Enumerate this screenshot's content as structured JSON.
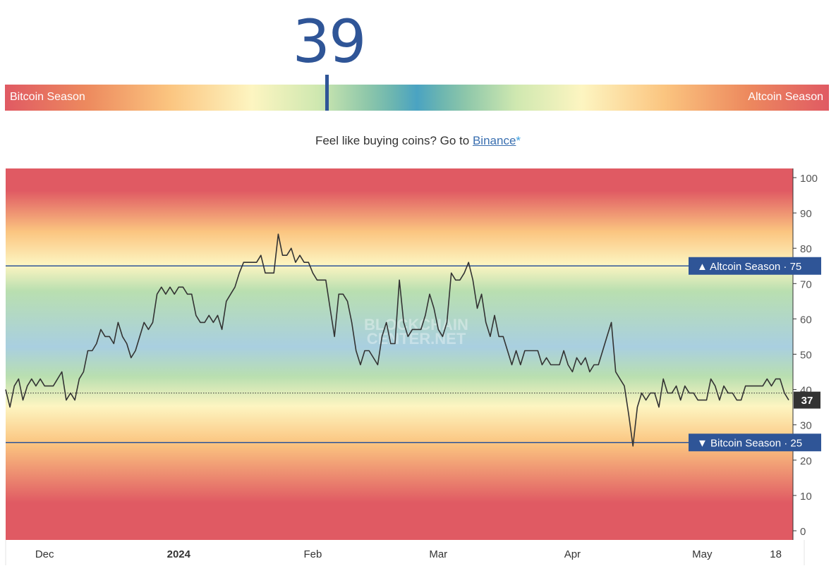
{
  "gauge": {
    "value": "39",
    "left_label": "Bitcoin Season",
    "right_label": "Altcoin Season"
  },
  "promo": {
    "text": "Feel like buying coins? Go to ",
    "link": "Binance",
    "asterisk": "*"
  },
  "colors": {
    "accent": "#2f5597",
    "line": "#333333",
    "band_red": "#e05a63",
    "band_orange": "#fbc580",
    "band_yellow": "#fdf5c1",
    "band_green": "#b9dfb0",
    "band_blue": "#a9cfe0",
    "marker_box": "#2f5597",
    "current_box": "#333333"
  },
  "chart_data": {
    "type": "line",
    "title": "",
    "xlabel": "",
    "ylabel": "",
    "ylim": [
      0,
      100
    ],
    "yticks": [
      0,
      10,
      20,
      30,
      40,
      50,
      60,
      70,
      80,
      90,
      100
    ],
    "x_tick_labels": [
      {
        "label": "Dec",
        "bold": false,
        "index": 9
      },
      {
        "label": "2024",
        "bold": true,
        "index": 40
      },
      {
        "label": "Feb",
        "bold": false,
        "index": 71
      },
      {
        "label": "Mar",
        "bold": false,
        "index": 100
      },
      {
        "label": "Apr",
        "bold": false,
        "index": 131
      },
      {
        "label": "May",
        "bold": false,
        "index": 161
      },
      {
        "label": "18",
        "bold": false,
        "index": 178
      }
    ],
    "watermark": [
      "BLOCKCHAIN",
      "CENTER.NET"
    ],
    "grid": false,
    "reference_lines": [
      {
        "label": "▲ Altcoin Season",
        "value": 75
      },
      {
        "label": "▼ Bitcoin Season",
        "value": 25
      }
    ],
    "current_value": 37,
    "current_line_value": 39,
    "series": [
      {
        "values": [
          40,
          35,
          41,
          43,
          37,
          41,
          43,
          41,
          43,
          41,
          41,
          41,
          43,
          45,
          37,
          39,
          37,
          43,
          45,
          51,
          51,
          53,
          57,
          55,
          55,
          53,
          59,
          55,
          53,
          49,
          51,
          55,
          59,
          57,
          59,
          67,
          69,
          67,
          69,
          67,
          69,
          69,
          67,
          67,
          61,
          59,
          59,
          61,
          59,
          61,
          57,
          65,
          67,
          69,
          73,
          76,
          76,
          76,
          76,
          78,
          73,
          73,
          73,
          84,
          78,
          78,
          80,
          76,
          78,
          76,
          76,
          73,
          71,
          71,
          71,
          63,
          55,
          67,
          67,
          65,
          59,
          51,
          47,
          51,
          51,
          49,
          47,
          55,
          59,
          53,
          53,
          71,
          59,
          55,
          57,
          57,
          57,
          61,
          67,
          63,
          57,
          55,
          59,
          73,
          71,
          71,
          73,
          76,
          71,
          63,
          67,
          59,
          55,
          61,
          55,
          55,
          51,
          47,
          51,
          47,
          51,
          51,
          51,
          51,
          47,
          49,
          47,
          47,
          47,
          51,
          47,
          45,
          49,
          47,
          49,
          45,
          47,
          47,
          51,
          55,
          59,
          45,
          43,
          41,
          33,
          24,
          35,
          39,
          37,
          39,
          39,
          35,
          43,
          39,
          39,
          41,
          37,
          41,
          39,
          39,
          37,
          37,
          37,
          43,
          41,
          37,
          41,
          39,
          39,
          37,
          37,
          41,
          41,
          41,
          41,
          41,
          43,
          41,
          43,
          43,
          39,
          37
        ]
      }
    ]
  }
}
